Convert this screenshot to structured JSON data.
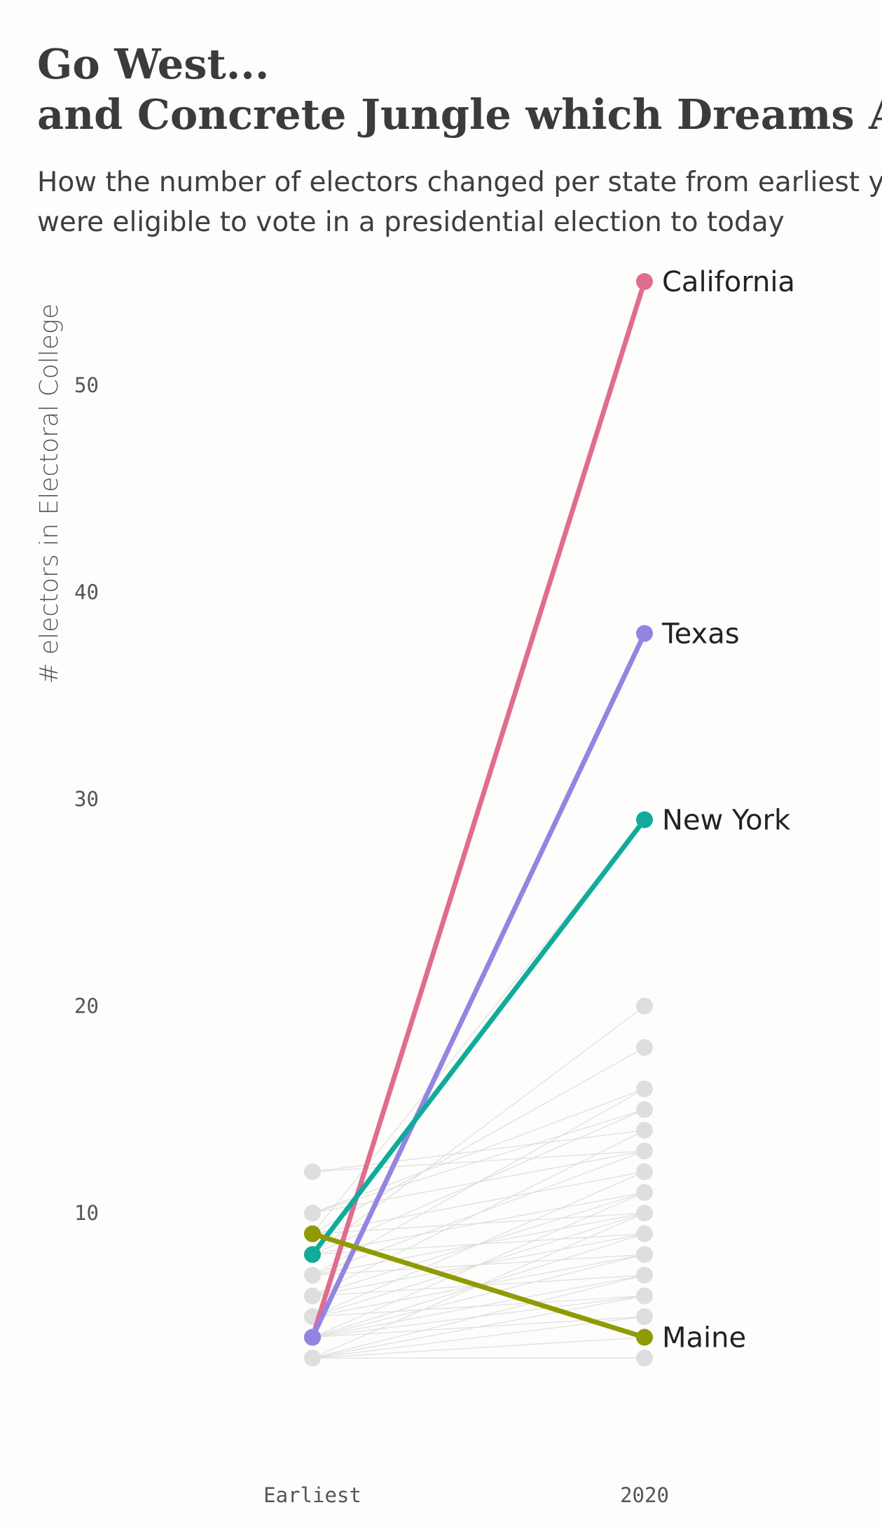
{
  "header": {
    "title_line1": "Go West...",
    "title_line2": "and Concrete Jungle which Dreams Are Made Of",
    "subtitle_line1": "How the number of electors changed per state from earliest year citizens",
    "subtitle_line2": "were eligible to vote in a presidential election to today"
  },
  "chart_data": {
    "type": "line",
    "x": [
      "Earliest",
      "2020"
    ],
    "ylabel": "# electors in Electoral College",
    "y_ticks": [
      "10",
      "20",
      "30",
      "40",
      "50"
    ],
    "ylim": [
      0,
      57
    ],
    "grid": false,
    "series": [
      {
        "name": "California",
        "values": [
          4,
          55
        ],
        "color": "#e06c8e"
      },
      {
        "name": "Texas",
        "values": [
          4,
          38
        ],
        "color": "#9484e2"
      },
      {
        "name": "New York",
        "values": [
          8,
          29
        ],
        "color": "#10ab9a"
      },
      {
        "name": "Maine",
        "values": [
          9,
          4
        ],
        "color": "#8f9a04"
      }
    ],
    "background_segments": [
      [
        3,
        3
      ],
      [
        3,
        4
      ],
      [
        3,
        5
      ],
      [
        3,
        6
      ],
      [
        3,
        7
      ],
      [
        3,
        10
      ],
      [
        4,
        5
      ],
      [
        4,
        6
      ],
      [
        4,
        7
      ],
      [
        4,
        8
      ],
      [
        4,
        9
      ],
      [
        4,
        11
      ],
      [
        5,
        6
      ],
      [
        5,
        8
      ],
      [
        5,
        10
      ],
      [
        5,
        12
      ],
      [
        6,
        7
      ],
      [
        6,
        9
      ],
      [
        6,
        11
      ],
      [
        6,
        14
      ],
      [
        7,
        8
      ],
      [
        7,
        10
      ],
      [
        7,
        13
      ],
      [
        7,
        16
      ],
      [
        8,
        9
      ],
      [
        8,
        11
      ],
      [
        8,
        15
      ],
      [
        8,
        20
      ],
      [
        9,
        10
      ],
      [
        9,
        12
      ],
      [
        9,
        18
      ],
      [
        9,
        29
      ],
      [
        10,
        13
      ],
      [
        10,
        15
      ],
      [
        10,
        16
      ],
      [
        12,
        13
      ],
      [
        12,
        14
      ]
    ],
    "background_color": "#dededf",
    "earliest_points": [
      3,
      4,
      5,
      6,
      7,
      8,
      9,
      10,
      12
    ],
    "latest_points": [
      3,
      4,
      5,
      6,
      7,
      8,
      9,
      10,
      11,
      12,
      13,
      14,
      15,
      16,
      18,
      20
    ]
  }
}
